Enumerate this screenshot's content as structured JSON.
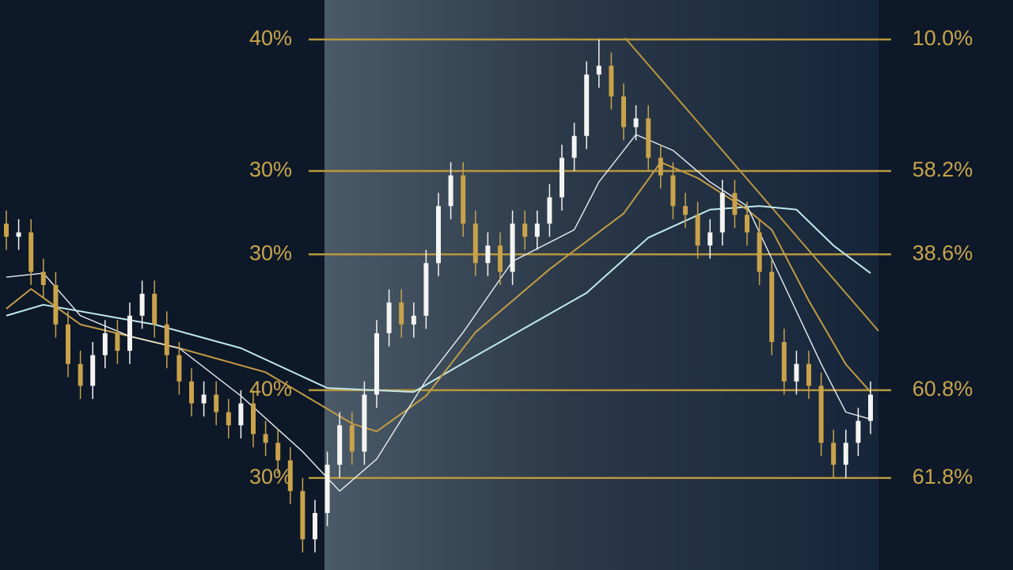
{
  "chart_data": {
    "type": "candlestick",
    "ylim": [
      -21,
      109
    ],
    "up_color": "#f4f4f2",
    "down_color": "#c9a24a",
    "level_color": "#b9973e",
    "open": [
      58,
      55,
      56,
      47,
      44,
      35,
      26,
      21,
      28,
      33,
      29,
      37,
      42,
      35,
      28,
      22,
      17,
      19,
      15,
      12,
      17,
      10,
      8,
      4,
      -3,
      -14,
      -8,
      3,
      12,
      6,
      19,
      33,
      40,
      35,
      37,
      49,
      62,
      69,
      58,
      49,
      53,
      47,
      58,
      55,
      58,
      64,
      73,
      78,
      92,
      94,
      87,
      80,
      82,
      73,
      69,
      62,
      60,
      53,
      56,
      65,
      60,
      56,
      47,
      31,
      22,
      26,
      21,
      8,
      3,
      8,
      13
    ],
    "high": [
      61,
      59,
      59,
      50,
      47,
      38,
      29,
      31,
      36,
      36,
      40,
      45,
      45,
      38,
      31,
      25,
      22,
      22,
      18,
      20,
      20,
      13,
      11,
      7,
      0,
      -5,
      6,
      15,
      15,
      22,
      36,
      43,
      43,
      40,
      52,
      65,
      72,
      72,
      61,
      56,
      56,
      61,
      61,
      61,
      67,
      76,
      81,
      95,
      100,
      97,
      90,
      85,
      85,
      76,
      72,
      65,
      63,
      59,
      68,
      68,
      63,
      59,
      50,
      34,
      29,
      29,
      24,
      11,
      11,
      16,
      22
    ],
    "low": [
      52,
      52,
      44,
      41,
      32,
      23,
      18,
      18,
      25,
      26,
      26,
      34,
      32,
      25,
      19,
      14,
      14,
      12,
      9,
      9,
      7,
      5,
      1,
      -6,
      -17,
      -17,
      -11,
      0,
      3,
      3,
      16,
      30,
      32,
      32,
      34,
      46,
      59,
      55,
      46,
      46,
      44,
      44,
      52,
      52,
      55,
      61,
      70,
      75,
      89,
      84,
      77,
      77,
      70,
      66,
      59,
      57,
      50,
      50,
      53,
      57,
      53,
      44,
      28,
      19,
      19,
      18,
      5,
      0,
      0,
      5,
      10
    ],
    "close": [
      55,
      56,
      47,
      44,
      35,
      26,
      21,
      28,
      33,
      29,
      37,
      42,
      35,
      28,
      22,
      17,
      19,
      15,
      12,
      17,
      10,
      8,
      4,
      -3,
      -14,
      -8,
      3,
      12,
      6,
      19,
      33,
      40,
      35,
      37,
      49,
      62,
      69,
      58,
      49,
      53,
      47,
      58,
      55,
      58,
      64,
      73,
      78,
      92,
      94,
      87,
      80,
      82,
      73,
      69,
      62,
      60,
      53,
      56,
      65,
      60,
      56,
      47,
      31,
      22,
      26,
      21,
      8,
      3,
      8,
      13,
      19
    ],
    "moving_averages": [
      {
        "color": "#bfe9ec",
        "x": [
          0,
          3,
          12,
          19,
          26,
          33,
          38,
          47,
          52,
          57,
          61,
          64,
          67,
          70
        ],
        "values": [
          37,
          39.5,
          35,
          29.6,
          20.5,
          19.6,
          27.8,
          42.2,
          54.8,
          61.2,
          62,
          61.2,
          53,
          46.7
        ]
      },
      {
        "color": "#c29c44",
        "x": [
          0,
          2,
          6,
          14,
          21,
          28,
          30,
          34,
          38,
          44,
          50,
          53,
          56,
          60,
          62,
          65,
          68,
          70
        ],
        "values": [
          38.6,
          43.1,
          35,
          29.6,
          24.1,
          12.4,
          10.6,
          18.7,
          33.2,
          47.6,
          60.3,
          72,
          68.4,
          61.2,
          56.6,
          40.4,
          25.9,
          19.6
        ]
      },
      {
        "color": "#e8eef2",
        "x": [
          0,
          3,
          6,
          10,
          14,
          19,
          24,
          27,
          30,
          34,
          37,
          41,
          46,
          48,
          51,
          54,
          57,
          60,
          63,
          66,
          68,
          70
        ],
        "values": [
          45.8,
          46.7,
          37,
          32.3,
          29.6,
          18.7,
          6,
          -3,
          4.3,
          22.3,
          33.2,
          49.4,
          56.6,
          67.5,
          78.3,
          74.7,
          67.5,
          62,
          44,
          26,
          15,
          13.4
        ]
      }
    ],
    "levels": [
      {
        "value": 100,
        "left_label": "40%",
        "right_label": "10.0%"
      },
      {
        "value": 70,
        "left_label": "30%",
        "right_label": "58.2%"
      },
      {
        "value": 51,
        "left_label": "30%",
        "right_label": "38.6%"
      },
      {
        "value": 20,
        "left_label": "40%",
        "right_label": "60.8%"
      },
      {
        "value": 0,
        "left_label": "30%",
        "right_label": "61.8%"
      }
    ]
  }
}
